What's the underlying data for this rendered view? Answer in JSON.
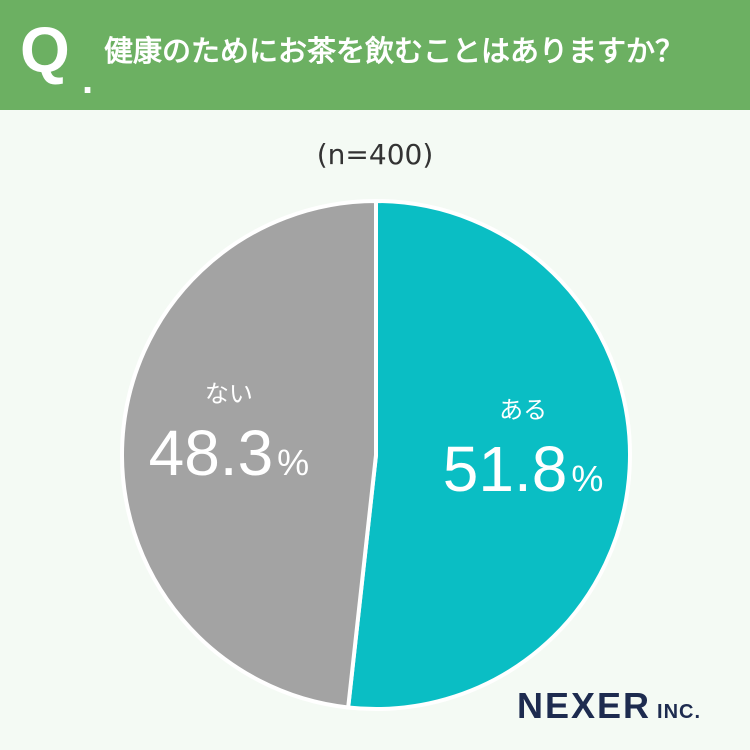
{
  "header": {
    "q_label": "Q",
    "q_dot": ".",
    "question": "健康のためにお茶を飲むことはありますか？"
  },
  "sample_label": "(n=400)",
  "colors": {
    "header_bg": "#6cb062",
    "yes": "#0abec4",
    "no": "#a3a3a3",
    "background": "#f4faf4"
  },
  "chart_data": {
    "type": "pie",
    "title": "健康のためにお茶を飲むことはありますか？",
    "slices": [
      {
        "label": "ある",
        "value": 51.8,
        "color": "#0abec4"
      },
      {
        "label": "ない",
        "value": 48.3,
        "color": "#a3a3a3"
      }
    ],
    "unit": "%",
    "n": 400
  },
  "logo": {
    "main": "NEXER",
    "suffix": "INC."
  }
}
